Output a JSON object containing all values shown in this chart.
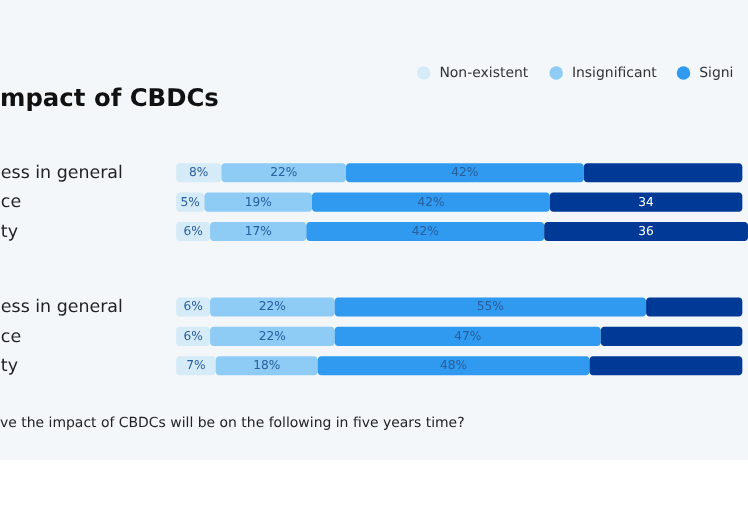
{
  "chart_data": [
    {
      "type": "bar",
      "orientation": "horizontal",
      "stacked": true,
      "title": "mpact of CBDCs",
      "legend": "top right",
      "categories": [
        "ess in general",
        "ce",
        "ty"
      ],
      "series": [
        {
          "name": "Non-existent",
          "color": "#d6ebf8",
          "values": [
            8,
            5,
            6
          ],
          "value_labels": [
            "8%",
            "5%",
            "6%"
          ]
        },
        {
          "name": "Insignificant",
          "color": "#8ecbf5",
          "values": [
            22,
            19,
            17
          ],
          "value_labels": [
            "22%",
            "19%",
            "17%"
          ]
        },
        {
          "name": "Signi",
          "color": "#2f9af0",
          "values": [
            42,
            42,
            42
          ],
          "value_labels": [
            "42%",
            "42%",
            "42%"
          ]
        },
        {
          "color": "#003a96",
          "values": [
            28,
            34,
            36
          ],
          "value_labels": [
            null,
            "34",
            "36"
          ]
        }
      ]
    },
    {
      "type": "bar",
      "orientation": "horizontal",
      "stacked": true,
      "legend": false,
      "categories": [
        "ess in general",
        "ce",
        "ty"
      ],
      "annotations": [
        "ve the impact of CBDCs will be on the following in five years time?"
      ],
      "series": [
        {
          "color": "#d6ebf8",
          "values": [
            6,
            6,
            7
          ],
          "value_labels": [
            "6%",
            "6%",
            "7%"
          ]
        },
        {
          "color": "#8ecbf5",
          "values": [
            22,
            22,
            18
          ],
          "value_labels": [
            "22%",
            "22%",
            "18%"
          ]
        },
        {
          "color": "#2f9af0",
          "values": [
            55,
            47,
            48
          ],
          "value_labels": [
            "55%",
            "47%",
            "48%"
          ]
        },
        {
          "color": "#003a96",
          "values": [
            17,
            25,
            27
          ]
        }
      ]
    }
  ]
}
